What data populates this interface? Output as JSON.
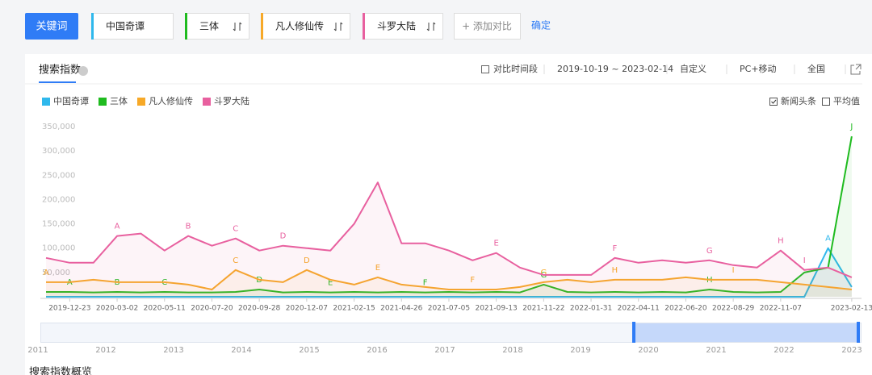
{
  "ui": {
    "keyword_button": "关键词",
    "add_compare": "+ 添加对比",
    "confirm": "确定",
    "tab": "搜索指数",
    "compare_period": "对比时间段",
    "date_range": "2019-10-19 ~ 2023-02-14",
    "custom": "自定义",
    "device": "PC+移动",
    "region": "全国",
    "news_headline": "新闻头条",
    "average": "平均值",
    "overview": "搜索指数概览",
    "slider_years": [
      "2011",
      "2012",
      "2013",
      "2014",
      "2015",
      "2016",
      "2017",
      "2018",
      "2019",
      "2020",
      "2021",
      "2022",
      "2023"
    ]
  },
  "chart_data": {
    "type": "line",
    "categories": [
      null,
      "2019-12-23",
      null,
      "2020-03-02",
      null,
      "2020-05-11",
      null,
      "2020-07-20",
      null,
      "2020-09-28",
      null,
      "2020-12-07",
      null,
      "2021-02-15",
      null,
      "2021-04-26",
      null,
      "2021-07-05",
      null,
      "2021-09-13",
      null,
      "2021-11-22",
      null,
      "2022-01-31",
      null,
      "2022-04-11",
      null,
      "2022-06-20",
      null,
      "2022-08-29",
      null,
      "2022-11-07",
      null,
      null,
      "2023-02-13"
    ],
    "series": [
      {
        "name": "中国奇谭",
        "color": "#2fb8ec",
        "values": [
          0,
          0,
          0,
          0,
          0,
          0,
          0,
          0,
          0,
          0,
          0,
          0,
          0,
          0,
          0,
          0,
          0,
          0,
          0,
          0,
          0,
          0,
          0,
          0,
          0,
          0,
          0,
          0,
          0,
          0,
          0,
          0,
          0,
          100000,
          20000
        ],
        "markers": [
          "A"
        ],
        "marker_at": [
          33
        ]
      },
      {
        "name": "三体",
        "color": "#1fbb1f",
        "values": [
          10000,
          10000,
          9000,
          10000,
          9000,
          10000,
          9000,
          9000,
          10000,
          15000,
          9000,
          10000,
          9000,
          10000,
          9000,
          10000,
          9000,
          10000,
          9000,
          10000,
          9000,
          25000,
          10000,
          9000,
          10000,
          9000,
          10000,
          9000,
          15000,
          10000,
          9000,
          10000,
          50000,
          60000,
          330000
        ],
        "markers": [
          "A",
          "B",
          "C",
          "D",
          "E",
          "F",
          "G",
          "H",
          "J"
        ],
        "marker_at": [
          1,
          3,
          5,
          9,
          12,
          16,
          21,
          28,
          34
        ]
      },
      {
        "name": "凡人修仙传",
        "color": "#f7a928",
        "values": [
          30000,
          30000,
          35000,
          30000,
          30000,
          30000,
          25000,
          15000,
          55000,
          35000,
          30000,
          55000,
          35000,
          25000,
          40000,
          25000,
          20000,
          15000,
          15000,
          15000,
          20000,
          30000,
          35000,
          30000,
          35000,
          35000,
          35000,
          40000,
          35000,
          35000,
          35000,
          30000,
          25000,
          20000,
          15000
        ],
        "markers": [
          "A",
          "C",
          "D",
          "E",
          "F",
          "G",
          "H",
          "I"
        ],
        "marker_at": [
          0,
          8,
          11,
          14,
          18,
          21,
          24,
          29
        ]
      },
      {
        "name": "斗罗大陆",
        "color": "#e8609f",
        "values": [
          80000,
          70000,
          70000,
          125000,
          130000,
          95000,
          125000,
          105000,
          120000,
          95000,
          105000,
          100000,
          95000,
          150000,
          235000,
          110000,
          110000,
          95000,
          75000,
          90000,
          60000,
          45000,
          45000,
          45000,
          80000,
          70000,
          75000,
          70000,
          75000,
          65000,
          60000,
          95000,
          55000,
          60000,
          40000
        ],
        "markers": [
          "A",
          "B",
          "C",
          "D",
          "E",
          "F",
          "G",
          "H",
          "I"
        ],
        "marker_at": [
          3,
          6,
          8,
          10,
          19,
          24,
          28,
          31,
          32
        ]
      }
    ],
    "ylim": [
      0,
      350000
    ],
    "yticks": [
      {
        "value": 50000,
        "label": "50,000"
      },
      {
        "value": 100000,
        "label": "100,000"
      },
      {
        "value": 150000,
        "label": "150,000"
      },
      {
        "value": 200000,
        "label": "200,000"
      },
      {
        "value": 250000,
        "label": "250,000"
      },
      {
        "value": 300000,
        "label": "300,000"
      },
      {
        "value": 350000,
        "label": "350,000"
      }
    ],
    "grid": false,
    "legend": "top-left"
  }
}
